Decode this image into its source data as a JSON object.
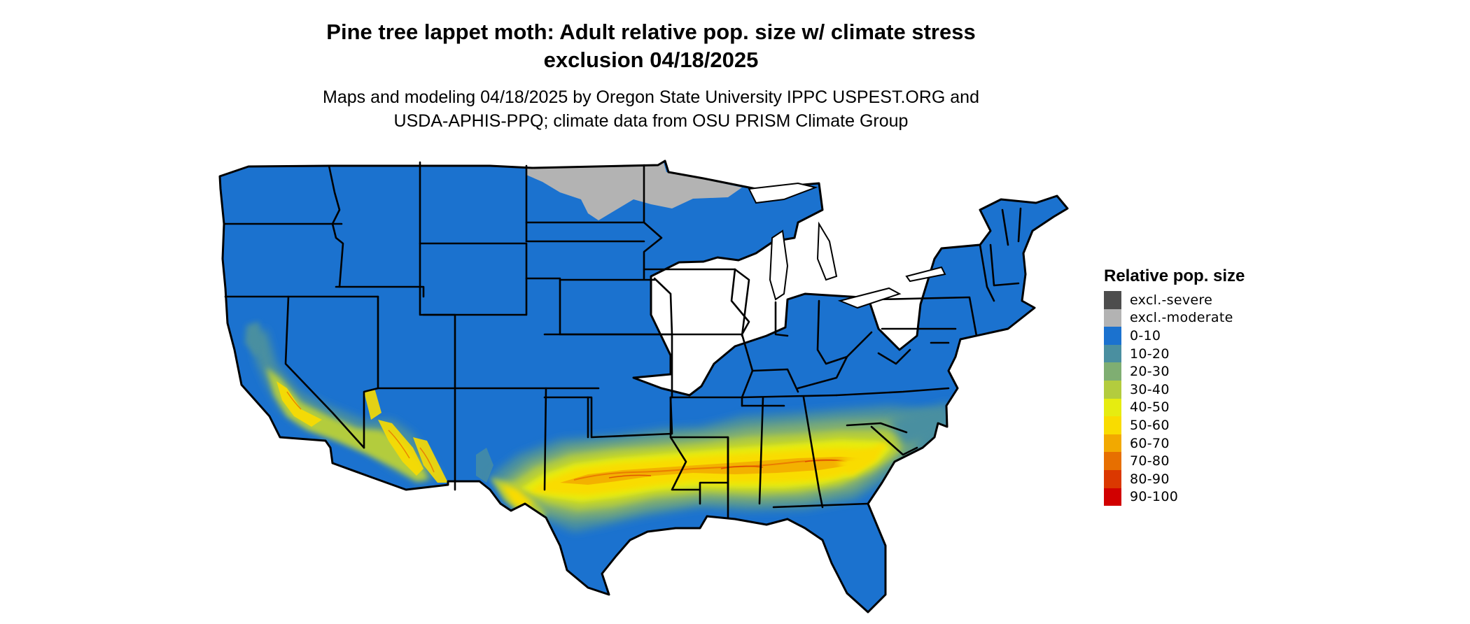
{
  "title": {
    "line1": "Pine tree lappet moth: Adult relative pop. size w/ climate stress",
    "line2": "exclusion 04/18/2025"
  },
  "subtitle": {
    "line1": "Maps and modeling 04/18/2025 by Oregon State University IPPC USPEST.ORG and",
    "line2": "USDA-APHIS-PPQ; climate data from OSU PRISM Climate Group"
  },
  "legend": {
    "title": "Relative pop. size",
    "items": [
      {
        "label": "excl.-severe",
        "color": "#4d4d4d"
      },
      {
        "label": "excl.-moderate",
        "color": "#b3b3b3"
      },
      {
        "label": "0-10",
        "color": "#1b72cf"
      },
      {
        "label": "10-20",
        "color": "#4a8fa0"
      },
      {
        "label": "20-30",
        "color": "#7fae72"
      },
      {
        "label": "30-40",
        "color": "#b3cc3e"
      },
      {
        "label": "40-50",
        "color": "#e6ec10"
      },
      {
        "label": "50-60",
        "color": "#f9dc00"
      },
      {
        "label": "60-70",
        "color": "#f2a900"
      },
      {
        "label": "70-80",
        "color": "#e76f00"
      },
      {
        "label": "80-90",
        "color": "#db3800"
      },
      {
        "label": "90-100",
        "color": "#d10000"
      }
    ]
  },
  "map": {
    "region": "conterminous United States",
    "base_color": "#1b72cf",
    "outline_color": "#000000"
  }
}
